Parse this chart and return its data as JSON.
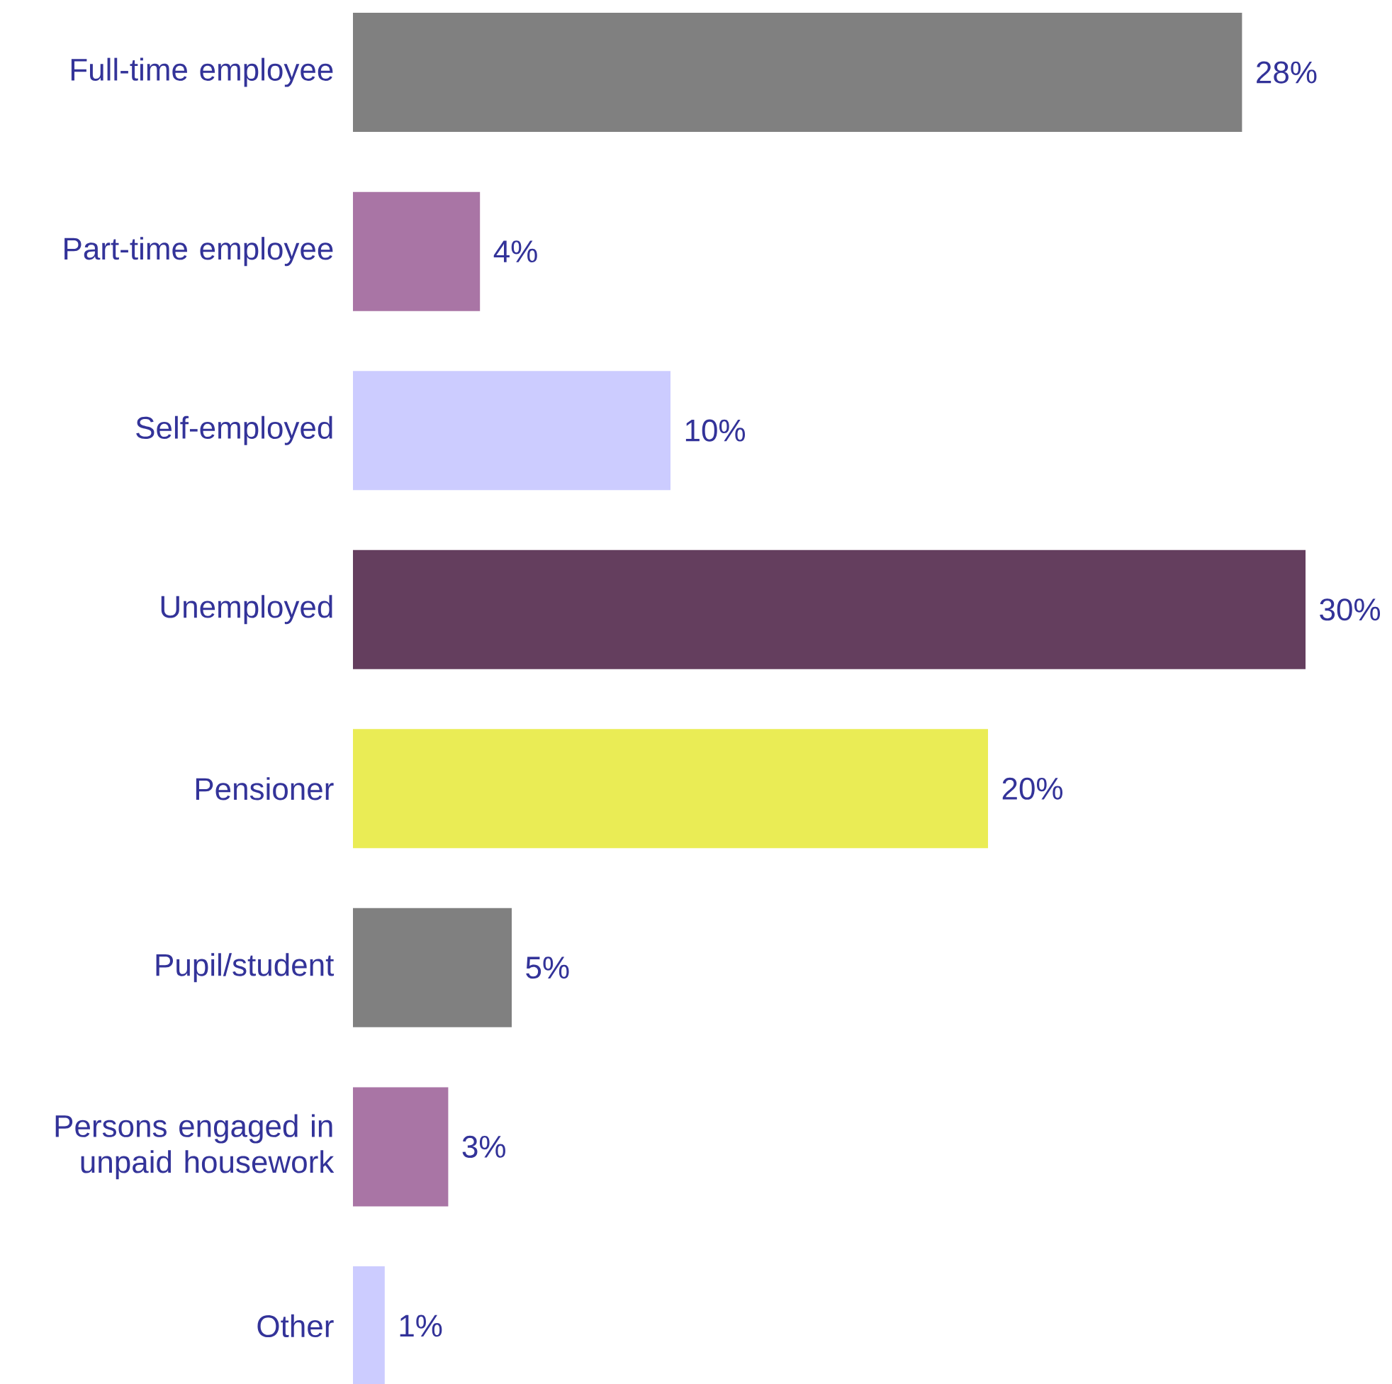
{
  "chart_data": {
    "type": "bar",
    "orientation": "horizontal",
    "categories": [
      "Full-time employee",
      "Part-time employee",
      "Self-employed",
      "Unemployed",
      "Pensioner",
      "Pupil/student",
      "Persons engaged in unpaid housework",
      "Other"
    ],
    "values": [
      28,
      4,
      10,
      30,
      20,
      5,
      3,
      1
    ],
    "value_labels": [
      "28%",
      "4%",
      "10%",
      "30%",
      "20%",
      "5%",
      "3%",
      "1%"
    ],
    "colors": [
      "#808080",
      "#a975a5",
      "#ccccff",
      "#643e5e",
      "#eaec55",
      "#808080",
      "#a975a5",
      "#ccccff"
    ]
  }
}
